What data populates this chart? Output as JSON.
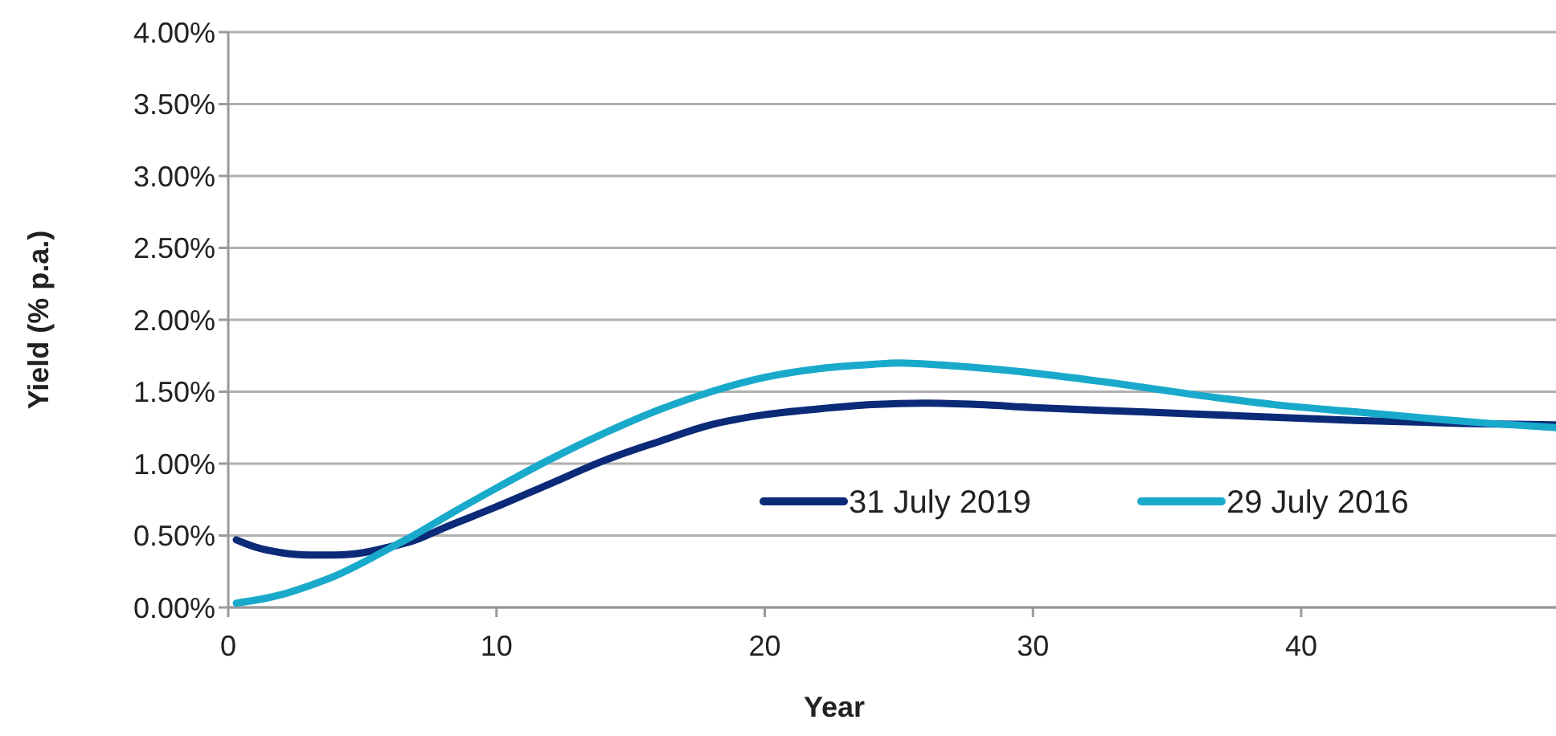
{
  "chart_data": {
    "type": "line",
    "xlabel": "Year",
    "ylabel": "Yield (% p.a.)",
    "xlim": [
      0,
      49.5
    ],
    "xticks": [
      0,
      10,
      20,
      30,
      40
    ],
    "ylim": [
      0,
      4
    ],
    "yticks": [
      {
        "value": 0,
        "label": "0.00%"
      },
      {
        "value": 0.5,
        "label": "0.50%"
      },
      {
        "value": 1,
        "label": "1.00%"
      },
      {
        "value": 1.5,
        "label": "1.50%"
      },
      {
        "value": 2,
        "label": "2.00%"
      },
      {
        "value": 2.5,
        "label": "2.50%"
      },
      {
        "value": 3,
        "label": "3.00%"
      },
      {
        "value": 3.5,
        "label": "3.50%"
      },
      {
        "value": 4,
        "label": "4.00%"
      }
    ],
    "grid": "y",
    "legend": "right",
    "marker": "none",
    "line_style": "solid",
    "series": [
      {
        "name": "31 July 2019",
        "color": "#0b2a78",
        "x": [
          0.3,
          1,
          2,
          3,
          4,
          5,
          6,
          7,
          8,
          10,
          12,
          14,
          16,
          18,
          20,
          22,
          24,
          26,
          28,
          30,
          34,
          38,
          42,
          46,
          49.5
        ],
        "values": [
          0.47,
          0.42,
          0.38,
          0.365,
          0.365,
          0.38,
          0.42,
          0.47,
          0.55,
          0.7,
          0.86,
          1.02,
          1.15,
          1.27,
          1.34,
          1.38,
          1.41,
          1.42,
          1.41,
          1.39,
          1.36,
          1.33,
          1.3,
          1.28,
          1.27
        ]
      },
      {
        "name": "29 July 2016",
        "color": "#19aacb",
        "x": [
          0.3,
          1,
          2,
          3,
          4,
          5,
          6,
          7,
          8,
          10,
          12,
          14,
          16,
          18,
          20,
          22,
          24,
          25,
          27,
          30,
          33,
          36,
          39,
          42,
          45,
          47,
          49.5
        ],
        "values": [
          0.03,
          0.05,
          0.09,
          0.15,
          0.22,
          0.31,
          0.41,
          0.51,
          0.62,
          0.83,
          1.03,
          1.21,
          1.37,
          1.5,
          1.6,
          1.66,
          1.69,
          1.7,
          1.68,
          1.63,
          1.56,
          1.48,
          1.41,
          1.36,
          1.31,
          1.28,
          1.25
        ]
      }
    ]
  }
}
